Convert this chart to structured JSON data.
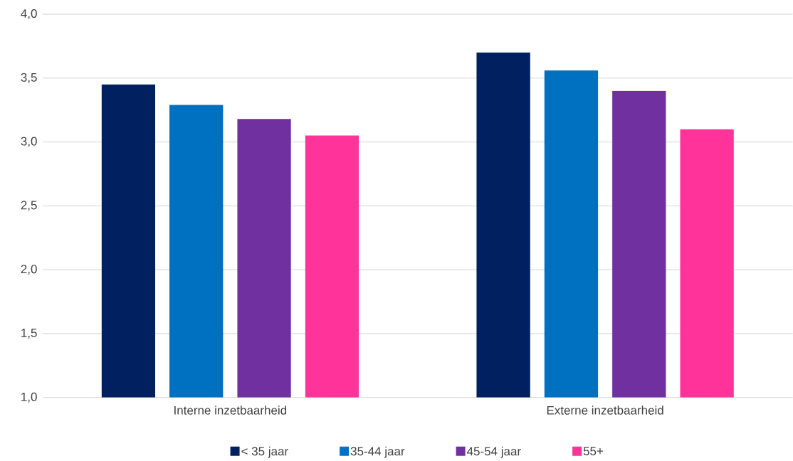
{
  "chart_data": {
    "type": "bar",
    "categories": [
      "Interne inzetbaarheid",
      "Externe inzetbaarheid"
    ],
    "series": [
      {
        "name": "< 35 jaar",
        "color": "#002060",
        "values": [
          3.45,
          3.7
        ]
      },
      {
        "name": "35-44 jaar",
        "color": "#0070c0",
        "values": [
          3.29,
          3.56
        ]
      },
      {
        "name": "45-54 jaar",
        "color": "#7030a0",
        "values": [
          3.18,
          3.4
        ]
      },
      {
        "name": "55+",
        "color": "#ff3399",
        "values": [
          3.05,
          3.1
        ]
      }
    ],
    "ylim": [
      1.0,
      4.0
    ],
    "yticks": [
      {
        "value": 1.0,
        "label": "1,0"
      },
      {
        "value": 1.5,
        "label": "1,5"
      },
      {
        "value": 2.0,
        "label": "2,0"
      },
      {
        "value": 2.5,
        "label": "2,5"
      },
      {
        "value": 3.0,
        "label": "3,0"
      },
      {
        "value": 3.5,
        "label": "3,5"
      },
      {
        "value": 4.0,
        "label": "4,0"
      }
    ],
    "grid": "y",
    "legend": "bottom"
  }
}
